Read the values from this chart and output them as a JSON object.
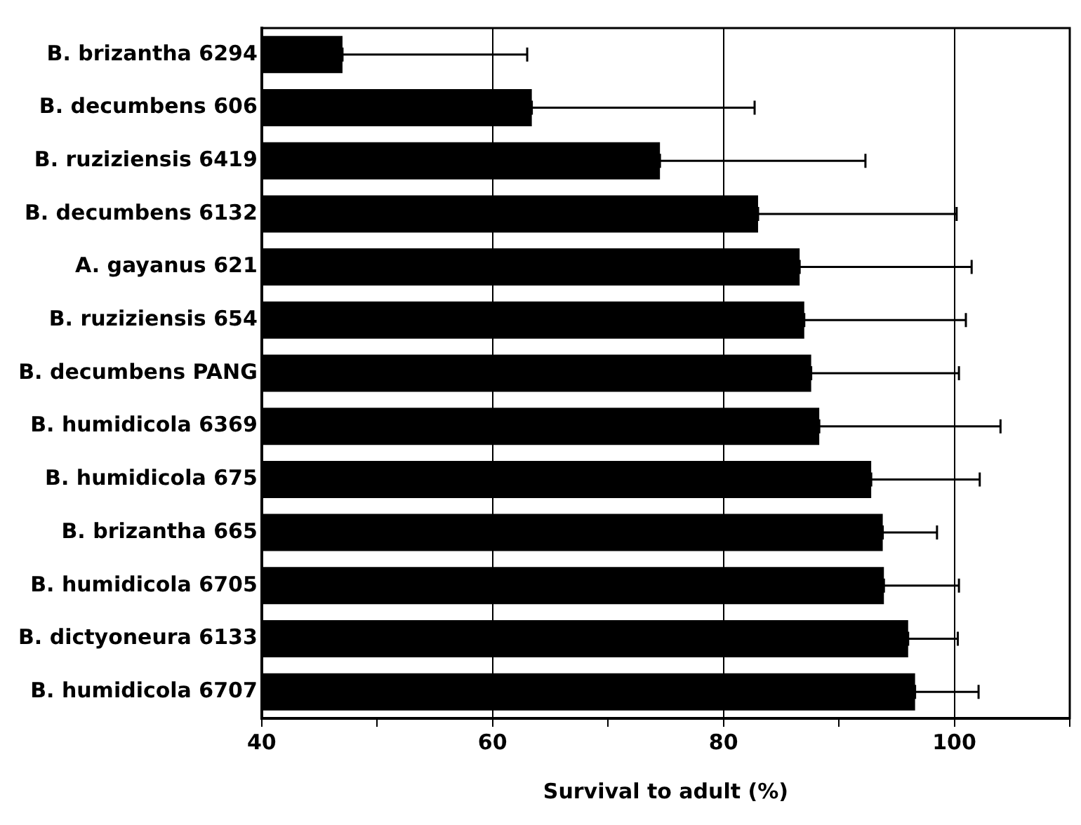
{
  "chart_data": {
    "type": "bar",
    "orientation": "horizontal",
    "xlabel": "Survival to adult (%)",
    "categories": [
      "B. brizantha 6294",
      "B. decumbens 606",
      "B. ruziziensis 6419",
      "B. decumbens 6132",
      "A. gayanus 621",
      "B. ruziziensis 654",
      "B. decumbens PANG",
      "B. humidicola 6369",
      "B. humidicola 675",
      "B. brizantha 665",
      "B. humidicola 6705",
      "B. dictyoneura 6133",
      "B. humidicola 6707"
    ],
    "values": [
      47,
      63.4,
      74.5,
      83,
      86.6,
      87,
      87.6,
      88.3,
      92.8,
      93.8,
      93.9,
      96,
      96.6
    ],
    "errors": [
      [
        47,
        63
      ],
      [
        63.4,
        82.7
      ],
      [
        74.5,
        92.3
      ],
      [
        83,
        100.2
      ],
      [
        86.6,
        101.5
      ],
      [
        87,
        101
      ],
      [
        87.6,
        100.4
      ],
      [
        88.3,
        104
      ],
      [
        92.8,
        102.2
      ],
      [
        93.8,
        98.5
      ],
      [
        93.9,
        100.4
      ],
      [
        96,
        100.3
      ],
      [
        96.6,
        102.1
      ]
    ],
    "color": "#000000",
    "xlim": [
      40,
      110
    ],
    "xticks": [
      40,
      {
        "value": 50,
        "label": null
      },
      60,
      {
        "value": 70,
        "label": null
      },
      80,
      {
        "value": 90,
        "label": null
      },
      100,
      {
        "value": 110,
        "label": null
      }
    ],
    "grid": "x",
    "legend": false
  }
}
